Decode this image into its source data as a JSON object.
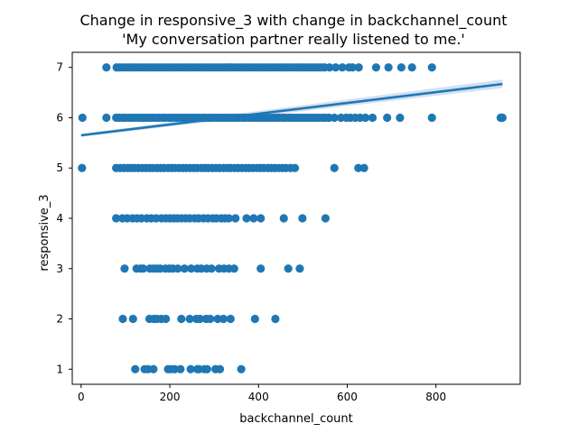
{
  "chart_data": {
    "type": "scatter",
    "title": "Change in responsive_3 with change in backchannel_count",
    "subtitle": "'My conversation partner really listened to me.'",
    "xlabel": "backchannel_count",
    "ylabel": "responsive_3",
    "xlim": [
      -20,
      990
    ],
    "ylim": [
      0.7,
      7.3
    ],
    "xticks": [
      0,
      200,
      400,
      600,
      800
    ],
    "yticks": [
      1,
      2,
      3,
      4,
      5,
      6,
      7
    ],
    "grid": false,
    "colors": {
      "points": "#1f77b4",
      "line": "#1f77b4",
      "band": "#aec7e8",
      "axes": "#000000"
    },
    "regression": {
      "x": [
        0,
        950
      ],
      "y": [
        5.65,
        6.67
      ],
      "ci_lower_end": 6.59,
      "ci_upper_end": 6.76
    },
    "points": {
      "1": [
        122,
        143,
        151,
        163,
        196,
        202,
        211,
        224,
        247,
        262,
        266,
        278,
        284,
        303,
        313,
        361
      ],
      "2": [
        94,
        117,
        154,
        164,
        171,
        181,
        191,
        226,
        245,
        260,
        268,
        282,
        291,
        308,
        321,
        337,
        392,
        438
      ],
      "3": [
        98,
        125,
        134,
        140,
        155,
        163,
        171,
        178,
        190,
        199,
        207,
        218,
        233,
        248,
        262,
        271,
        283,
        294,
        311,
        322,
        333,
        345,
        405,
        467,
        493
      ],
      "4": [
        79,
        93,
        104,
        116,
        126,
        136,
        148,
        158,
        169,
        181,
        191,
        200,
        209,
        217,
        226,
        236,
        245,
        256,
        265,
        276,
        286,
        297,
        305,
        316,
        324,
        333,
        348,
        373,
        389,
        405,
        457,
        499,
        551
      ],
      "5": [
        2,
        79,
        88,
        96,
        105,
        113,
        121,
        129,
        138,
        146,
        154,
        162,
        171,
        179,
        187,
        196,
        204,
        212,
        221,
        229,
        237,
        246,
        254,
        262,
        271,
        279,
        287,
        296,
        304,
        312,
        321,
        329,
        337,
        346,
        354,
        362,
        371,
        379,
        387,
        396,
        404,
        412,
        421,
        429,
        437,
        446,
        454,
        462,
        472,
        482,
        571,
        625,
        638
      ],
      "6": [
        3,
        57,
        79,
        86,
        94,
        101,
        109,
        116,
        124,
        131,
        139,
        146,
        154,
        161,
        169,
        176,
        184,
        191,
        199,
        206,
        214,
        221,
        229,
        236,
        244,
        251,
        259,
        266,
        274,
        281,
        289,
        296,
        304,
        311,
        319,
        326,
        334,
        341,
        349,
        356,
        364,
        371,
        379,
        386,
        394,
        401,
        409,
        416,
        424,
        431,
        439,
        446,
        454,
        461,
        469,
        476,
        484,
        491,
        499,
        506,
        514,
        521,
        529,
        536,
        544,
        551,
        559,
        571,
        586,
        598,
        607,
        618,
        629,
        641,
        657,
        690,
        719,
        791,
        946,
        948,
        950
      ],
      "7": [
        57,
        80,
        87,
        94,
        101,
        108,
        115,
        122,
        129,
        136,
        143,
        150,
        157,
        164,
        171,
        178,
        185,
        192,
        199,
        206,
        213,
        220,
        227,
        234,
        241,
        248,
        255,
        262,
        269,
        276,
        283,
        290,
        297,
        304,
        311,
        318,
        325,
        332,
        339,
        346,
        353,
        360,
        367,
        374,
        381,
        388,
        395,
        402,
        409,
        416,
        423,
        430,
        437,
        444,
        451,
        458,
        465,
        472,
        479,
        486,
        493,
        500,
        507,
        514,
        521,
        528,
        535,
        542,
        549,
        560,
        574,
        589,
        604,
        612,
        626,
        665,
        693,
        722,
        746,
        791
      ]
    }
  }
}
